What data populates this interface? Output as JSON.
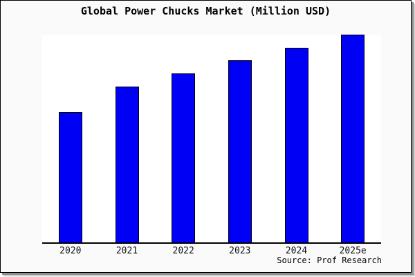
{
  "card": {
    "bg_color": "#fafafa",
    "border_color": "#000000",
    "shadow_color": "#8f8f8f"
  },
  "chart_data": {
    "type": "bar",
    "title": "Global Power Chucks Market (Million USD)",
    "categories": [
      "2020",
      "2021",
      "2022",
      "2023",
      "2024",
      "2025e"
    ],
    "values_pct_of_max": [
      62.7,
      75.0,
      81.3,
      87.7,
      93.8,
      100.0
    ],
    "value_scale_note": "no y-axis or gridlines shown; values are relative bar heights as percent of tallest bar (2025e)",
    "xlabel": "",
    "ylabel": "",
    "ylim": [
      0,
      100
    ],
    "grid": false,
    "legend": false,
    "y_axis_shown": false,
    "bar_color": "#0000f5",
    "bar_border_color": "#000000",
    "plot_bg_color": "#ffffff",
    "source": "Source: Prof Research"
  }
}
